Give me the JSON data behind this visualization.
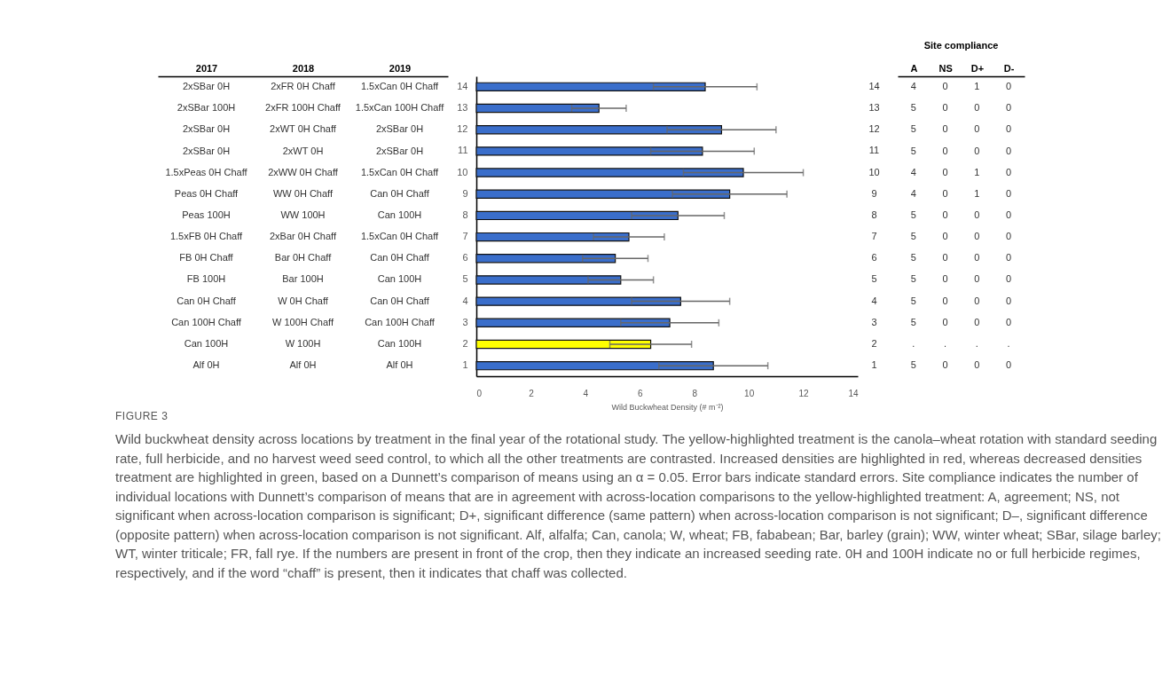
{
  "chart_data": [
    {
      "type": "other",
      "categories": [
        "2017",
        "2018",
        "2019"
      ],
      "cell_labels": [
        [
          "2xSBar 0H",
          "2xFR 0H Chaff",
          "1.5xCan 0H Chaff"
        ],
        [
          "2xSBar 100H",
          "2xFR 100H Chaff",
          "1.5xCan 100H Chaff"
        ],
        [
          "2xSBar 0H",
          "2xWT 0H Chaff",
          "2xSBar 0H"
        ],
        [
          "2xSBar 0H",
          "2xWT 0H",
          "2xSBar 0H"
        ],
        [
          "1.5xPeas 0H Chaff",
          "2xWW 0H Chaff",
          "1.5xCan 0H Chaff"
        ],
        [
          "Peas 0H Chaff",
          "WW 0H Chaff",
          "Can 0H Chaff"
        ],
        [
          "Peas 100H",
          "WW 100H",
          "Can 100H"
        ],
        [
          "1.5xFB 0H Chaff",
          "2xBar 0H Chaff",
          "1.5xCan 0H Chaff"
        ],
        [
          "FB 0H Chaff",
          "Bar 0H Chaff",
          "Can 0H Chaff"
        ],
        [
          "FB 100H",
          "Bar 100H",
          "Can 100H"
        ],
        [
          "Can 0H Chaff",
          "W 0H Chaff",
          "Can 0H Chaff"
        ],
        [
          "Can 100H Chaff",
          "W 100H Chaff",
          "Can 100H Chaff"
        ],
        [
          "Can 100H",
          "W 100H",
          "Can 100H"
        ],
        [
          "Alf 0H",
          "Alf 0H",
          "Alf 0H"
        ]
      ]
    },
    {
      "type": "bar",
      "orientation": "horizontal",
      "xlabel": "Wild Buckwheat Density (# m⁻²)",
      "categories": [
        "14",
        "13",
        "12",
        "11",
        "10",
        "9",
        "8",
        "7",
        "6",
        "5",
        "4",
        "3",
        "2",
        "1"
      ],
      "values": [
        8.4,
        4.5,
        9.0,
        8.3,
        9.8,
        9.3,
        7.4,
        5.6,
        5.1,
        5.3,
        7.5,
        7.1,
        6.4,
        8.7
      ],
      "errors": [
        1.9,
        1.0,
        2.0,
        1.9,
        2.2,
        2.1,
        1.7,
        1.3,
        1.2,
        1.2,
        1.8,
        1.8,
        1.5,
        2.0
      ],
      "colors": [
        "#3a6ecb",
        "#3a6ecb",
        "#3a6ecb",
        "#3a6ecb",
        "#3a6ecb",
        "#3a6ecb",
        "#3a6ecb",
        "#3a6ecb",
        "#3a6ecb",
        "#3a6ecb",
        "#3a6ecb",
        "#3a6ecb",
        "#ffff00",
        "#3a6ecb"
      ],
      "xlim": [
        0,
        14
      ],
      "xticks": [
        0,
        2,
        4,
        6,
        8,
        10,
        12,
        14
      ],
      "annotations": [
        "FIGURE 3",
        "Wild buckwheat density across locations by treatment in the final year of the rotational study. The yellow-highlighted treatment is the canola–wheat rotation with standard seeding rate, full herbicide, and no harvest weed seed control, to which all the other treatments are contrasted. Increased densities are highlighted in red, whereas decreased densities treatment are highlighted in green, based on a Dunnett’s comparison of means using an α = 0.05. Error bars indicate standard errors. Site compliance indicates the number of individual locations with Dunnett’s comparison of means that are in agreement with across-location comparisons to the yellow-highlighted treatment: A, agreement; NS, not significant when across-location comparison is significant; D+, significant difference (same pattern) when across-location comparison is not significant; D–, significant difference (opposite pattern) when across-location comparison is not significant. Alf, alfalfa; Can, canola; W, wheat; FB, fababean; Bar, barley (grain); WW, winter wheat; SBar, silage barley; WT, winter triticale; FR, fall rye. If the numbers are present in front of the crop, then they indicate an increased seeding rate. 0H and 100H indicate no or full herbicide regimes, respectively, and if the word “chaff” is present, then it indicates that chaff was collected."
      ]
    },
    {
      "type": "other",
      "title": "Site compliance",
      "categories": [
        "A",
        "NS",
        "D+",
        "D-"
      ],
      "cell_labels": [
        [
          "4",
          "0",
          "1",
          "0"
        ],
        [
          "5",
          "0",
          "0",
          "0"
        ],
        [
          "5",
          "0",
          "0",
          "0"
        ],
        [
          "5",
          "0",
          "0",
          "0"
        ],
        [
          "4",
          "0",
          "1",
          "0"
        ],
        [
          "4",
          "0",
          "1",
          "0"
        ],
        [
          "5",
          "0",
          "0",
          "0"
        ],
        [
          "5",
          "0",
          "0",
          "0"
        ],
        [
          "5",
          "0",
          "0",
          "0"
        ],
        [
          "5",
          "0",
          "0",
          "0"
        ],
        [
          "5",
          "0",
          "0",
          "0"
        ],
        [
          "5",
          "0",
          "0",
          "0"
        ],
        [
          ".",
          ".",
          ".",
          "."
        ],
        [
          "5",
          "0",
          "0",
          "0"
        ]
      ]
    }
  ]
}
